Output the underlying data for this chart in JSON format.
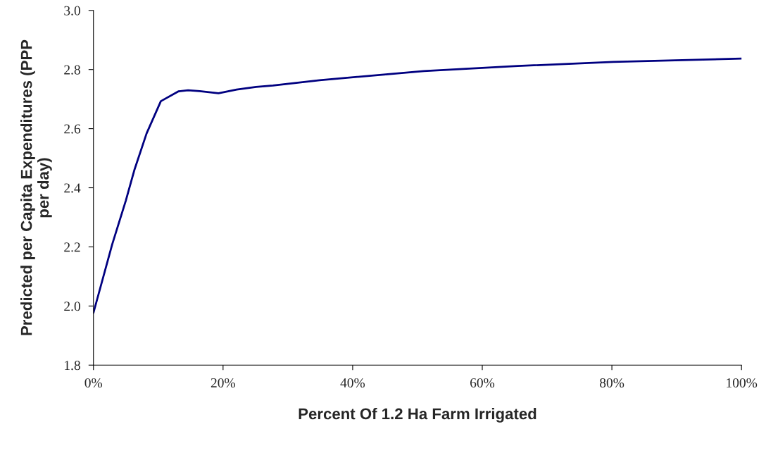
{
  "chart_data": {
    "type": "line",
    "xlabel": "Percent Of 1.2 Ha Farm Irrigated",
    "ylabel": "Predicted per Capita Expenditures (PPP\nper day)",
    "x": [
      0,
      2.9,
      5.0,
      6.3,
      8.2,
      10.4,
      13.1,
      14.6,
      16.4,
      19.3,
      22.1,
      25.1,
      27.7,
      34.9,
      51.0,
      65.5,
      80.2,
      100
    ],
    "series": [
      {
        "color": "#000080",
        "values": [
          1.977,
          2.209,
          2.357,
          2.459,
          2.584,
          2.693,
          2.726,
          2.73,
          2.727,
          2.72,
          2.732,
          2.741,
          2.746,
          2.764,
          2.795,
          2.812,
          2.826,
          2.837
        ]
      }
    ],
    "xlim": [
      0,
      100
    ],
    "xticks": [
      {
        "value": 0,
        "label": "0%"
      },
      {
        "value": 20,
        "label": "20%"
      },
      {
        "value": 40,
        "label": "40%"
      },
      {
        "value": 60,
        "label": "60%"
      },
      {
        "value": 80,
        "label": "80%"
      },
      {
        "value": 100,
        "label": "100%"
      }
    ],
    "ylim": [
      1.8,
      3.0
    ],
    "yticks": [
      {
        "value": 1.8,
        "label": "1.8"
      },
      {
        "value": 2.0,
        "label": "2.0"
      },
      {
        "value": 2.2,
        "label": "2.2"
      },
      {
        "value": 2.4,
        "label": "2.4"
      },
      {
        "value": 2.6,
        "label": "2.6"
      },
      {
        "value": 2.8,
        "label": "2.8"
      },
      {
        "value": 3.0,
        "label": "3.0"
      }
    ],
    "grid": false,
    "legend": false,
    "marker": "none",
    "line_style": "solid"
  }
}
